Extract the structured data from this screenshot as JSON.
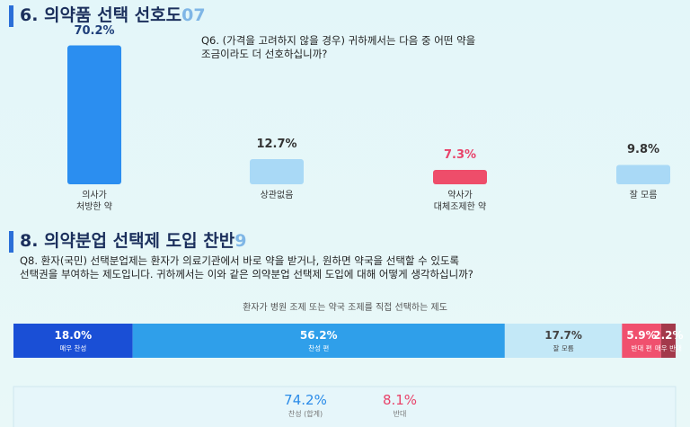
{
  "chart_data": [
    {
      "type": "bar",
      "title": "6. 의약품 선택 선호도",
      "section_number": "07",
      "question": "Q6. (가격을 고려하지 않을 경우) 귀하께서는 다음 중 어떤 약을\n조금이라도 더 선호하십니까?",
      "categories": [
        "의사가\n처방한 약",
        "상관없음",
        "약사가\n대체조제한 약",
        "잘 모름"
      ],
      "values": [
        70.2,
        12.7,
        7.3,
        9.8
      ],
      "value_labels": [
        "70.2%",
        "12.7%",
        "7.3%",
        "9.8%"
      ],
      "colors": [
        "#2b8ef0",
        "#a9d9f6",
        "#ee4d6a",
        "#a9d9f6"
      ],
      "value_label_colors": [
        "#1f3f7a",
        "#333333",
        "#e8436a",
        "#333333"
      ]
    },
    {
      "type": "stacked_bar",
      "title": "8. 의약분업 선택제 도입 찬반",
      "section_number": "9",
      "question": "Q8. 환자(국민) 선택분업제는 환자가 의료기관에서 바로 약을 받거나, 원하면 약국을 선택할 수 있도록\n선택권을 부여하는 제도입니다. 귀하께서는 이와 같은 의약분업 선택제 도입에 대해 어떻게 생각하십니까?",
      "subtitle": "환자가 병원 조제 또는 약국 조제를 직접 선택하는 제도",
      "series": [
        {
          "name": "매우 찬성",
          "color": "#1a4fd6",
          "label_color": "#ffffff",
          "values": [
            18.0
          ],
          "value_labels": [
            "18.0%"
          ]
        },
        {
          "name": "찬성 편",
          "color": "#2f9fea",
          "label_color": "#ffffff",
          "values": [
            56.2
          ],
          "value_labels": [
            "56.2%"
          ]
        },
        {
          "name": "잘 모름",
          "color": "#c3e8f7",
          "label_color": "#444444",
          "values": [
            17.7
          ],
          "value_labels": [
            "17.7%"
          ]
        },
        {
          "name": "반대 편",
          "color": "#f0506e",
          "label_color": "#ffffff",
          "values": [
            5.9
          ],
          "value_labels": [
            "5.9%"
          ]
        },
        {
          "name": "매우 반대",
          "color": "#a3394b",
          "label_color": "#ffffff",
          "values": [
            2.2
          ],
          "value_labels": [
            "2.2%"
          ]
        }
      ],
      "summary": [
        {
          "value": 74.2,
          "value_label": "74.2%",
          "label": "찬성 (합계)",
          "color": "#2a8be8"
        },
        {
          "value": 8.1,
          "value_label": "8.1%",
          "label": "반대",
          "color": "#e8436a"
        }
      ]
    }
  ]
}
